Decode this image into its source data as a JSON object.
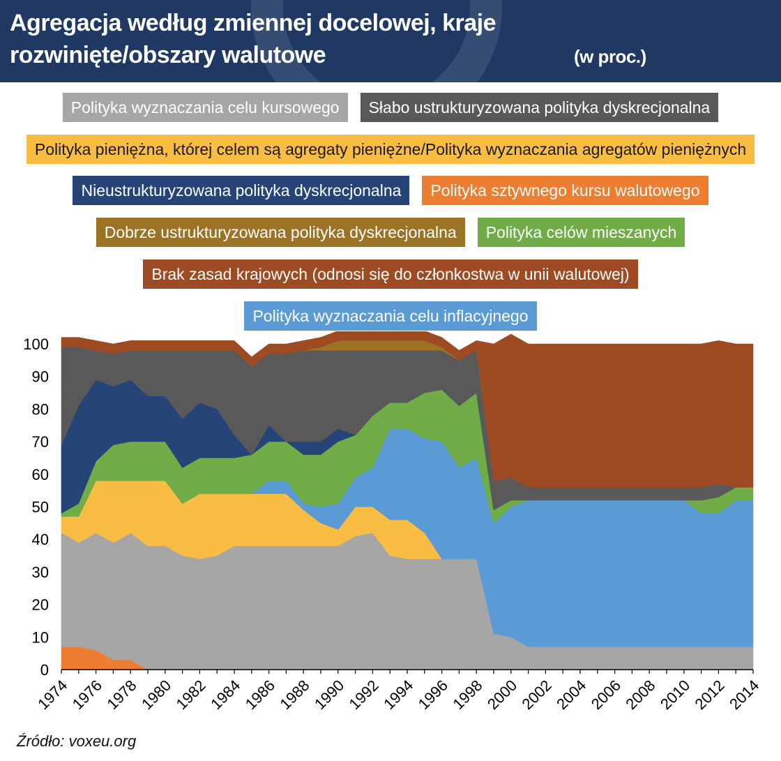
{
  "header": {
    "title": "Agregacja według zmiennej docelowej, kraje rozwinięte/obszary walutowe",
    "unit": "(w proc.)"
  },
  "source": "Źródło: voxeu.org",
  "legend_rows": [
    [
      {
        "name": "Polityka wyznaczania celu kursowego",
        "color": "#a6a6a6"
      },
      {
        "name": "Słabo ustrukturyzowana polityka dyskrecjonalna",
        "color": "#595959"
      }
    ],
    [
      {
        "name": "Polityka pieniężna, której celem są agregaty pieniężne/Polityka wyznaczania agregatów pieniężnych",
        "color": "#f9bd44"
      }
    ],
    [
      {
        "name": "Nieustrukturyzowana polityka dyskrecjonalna",
        "color": "#264478"
      },
      {
        "name": "Polityka sztywnego kursu walutowego",
        "color": "#ed7d31"
      }
    ],
    [
      {
        "name": "Dobrze ustrukturyzowana polityka dyskrecjonalna",
        "color": "#9c7325"
      },
      {
        "name": "Polityka celów mieszanych",
        "color": "#70ad47"
      }
    ],
    [
      {
        "name": "Brak zasad krajowych (odnosi się do członkostwa w unii walutowej)",
        "color": "#9e4a22"
      }
    ],
    [
      {
        "name": "Polityka wyznaczania celu inflacyjnego",
        "color": "#5b9bd5"
      }
    ]
  ],
  "chart_data": {
    "type": "area",
    "stacked": true,
    "x": [
      1974,
      1975,
      1976,
      1977,
      1978,
      1979,
      1980,
      1981,
      1982,
      1983,
      1984,
      1985,
      1986,
      1987,
      1988,
      1989,
      1990,
      1991,
      1992,
      1993,
      1994,
      1995,
      1996,
      1997,
      1998,
      1999,
      2000,
      2001,
      2002,
      2003,
      2004,
      2005,
      2006,
      2007,
      2008,
      2009,
      2010,
      2011,
      2012,
      2013,
      2014
    ],
    "ylim": [
      0,
      100
    ],
    "yticks": [
      0,
      10,
      20,
      30,
      40,
      50,
      60,
      70,
      80,
      90,
      100
    ],
    "xtick_labels": [
      "1974",
      "1976",
      "1978",
      "1980",
      "1982",
      "1984",
      "1986",
      "1988",
      "1990",
      "1992",
      "1994",
      "1996",
      "1998",
      "2000",
      "2002",
      "2004",
      "2006",
      "2008",
      "2010",
      "2012",
      "2014"
    ],
    "series": [
      {
        "name": "Polityka sztywnego kursu walutowego",
        "color": "#ed7d31",
        "values": [
          7,
          7,
          6,
          3,
          3,
          0,
          0,
          0,
          0,
          0,
          0,
          0,
          0,
          0,
          0,
          0,
          0,
          0,
          0,
          0,
          0,
          0,
          0,
          0,
          0,
          0,
          0,
          0,
          0,
          0,
          0,
          0,
          0,
          0,
          0,
          0,
          0,
          0,
          0,
          0,
          0
        ]
      },
      {
        "name": "Polityka wyznaczania celu kursowego",
        "color": "#a6a6a6",
        "values": [
          35,
          32,
          36,
          36,
          39,
          38,
          38,
          35,
          34,
          35,
          38,
          38,
          38,
          38,
          38,
          38,
          38,
          41,
          42,
          35,
          34,
          34,
          34,
          34,
          34,
          11,
          10,
          7,
          7,
          7,
          7,
          7,
          7,
          7,
          7,
          7,
          7,
          7,
          7,
          7,
          7
        ]
      },
      {
        "name": "Polityka pieniężna, której celem są agregaty pieniężne/Polityka wyznaczania agregatów pieniężnych",
        "color": "#f9bd44",
        "values": [
          5,
          8,
          16,
          19,
          16,
          20,
          20,
          16,
          20,
          19,
          16,
          16,
          16,
          16,
          11,
          7,
          5,
          9,
          8,
          11,
          12,
          8,
          0,
          0,
          0,
          0,
          0,
          0,
          0,
          0,
          0,
          0,
          0,
          0,
          0,
          0,
          0,
          0,
          0,
          0,
          0
        ]
      },
      {
        "name": "Polityka wyznaczania celu inflacyjnego",
        "color": "#5b9bd5",
        "values": [
          0,
          0,
          0,
          0,
          0,
          0,
          0,
          0,
          0,
          0,
          0,
          0,
          4,
          4,
          2,
          5,
          8,
          9,
          12,
          28,
          28,
          29,
          36,
          28,
          31,
          34,
          40,
          45,
          45,
          45,
          45,
          45,
          45,
          45,
          45,
          45,
          45,
          41,
          41,
          45,
          45
        ]
      },
      {
        "name": "Polityka celów mieszanych",
        "color": "#70ad47",
        "values": [
          1,
          4,
          6,
          11,
          12,
          12,
          12,
          11,
          11,
          11,
          11,
          12,
          12,
          12,
          15,
          16,
          19,
          13,
          16,
          8,
          8,
          14,
          16,
          19,
          20,
          4,
          2,
          0,
          0,
          0,
          0,
          0,
          0,
          0,
          0,
          0,
          0,
          4,
          5,
          4,
          4
        ]
      },
      {
        "name": "Nieustrukturyzowana polityka dyskrecjonalna",
        "color": "#264478",
        "values": [
          21,
          30,
          25,
          18,
          19,
          14,
          14,
          15,
          17,
          15,
          7,
          0,
          5,
          0,
          4,
          4,
          4,
          0,
          0,
          0,
          0,
          0,
          0,
          0,
          0,
          0,
          0,
          0,
          0,
          0,
          0,
          0,
          0,
          0,
          0,
          0,
          0,
          0,
          0,
          0,
          0
        ]
      },
      {
        "name": "Słabo ustrukturyzowana polityka dyskrecjonalna",
        "color": "#595959",
        "values": [
          30,
          18,
          9,
          10,
          9,
          14,
          14,
          21,
          16,
          18,
          26,
          27,
          22,
          27,
          28,
          28,
          24,
          26,
          20,
          16,
          16,
          13,
          12,
          14,
          13,
          9,
          7,
          4,
          4,
          4,
          4,
          4,
          4,
          4,
          4,
          4,
          4,
          4,
          4,
          0,
          0
        ]
      },
      {
        "name": "Dobrze ustrukturyzowana polityka dyskrecjonalna",
        "color": "#9c7325",
        "values": [
          0,
          0,
          0,
          0,
          0,
          0,
          0,
          0,
          0,
          0,
          0,
          0,
          0,
          0,
          0,
          1,
          3,
          3,
          3,
          3,
          3,
          3,
          1,
          0,
          0,
          0,
          0,
          0,
          0,
          0,
          0,
          0,
          0,
          0,
          0,
          0,
          0,
          0,
          0,
          0,
          0
        ]
      },
      {
        "name": "Brak zasad krajowych (odnosi się do członkostwa w unii walutowej)",
        "color": "#9e4a22",
        "values": [
          3,
          3,
          3,
          3,
          3,
          3,
          3,
          3,
          3,
          3,
          3,
          3,
          3,
          3,
          3,
          3,
          3,
          3,
          3,
          3,
          3,
          3,
          3,
          3,
          3,
          42,
          44,
          44,
          44,
          44,
          44,
          44,
          44,
          44,
          44,
          44,
          44,
          44,
          44,
          44,
          44
        ]
      }
    ]
  }
}
